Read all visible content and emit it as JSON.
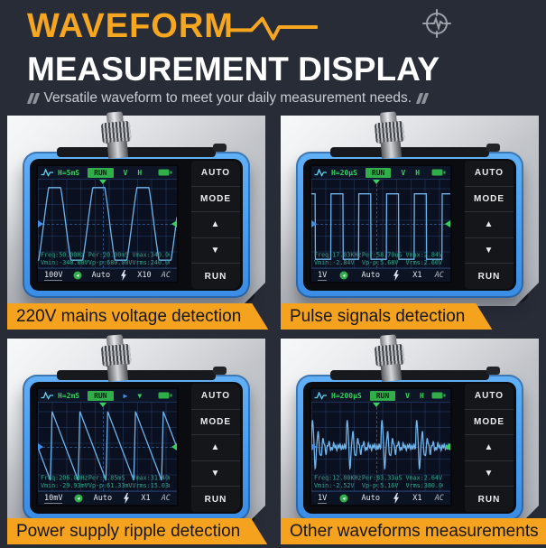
{
  "page": {
    "background": "#272c37",
    "accent_orange": "#f5a31e",
    "device_blue": "#4aa0f2",
    "screen_green": "#35d05e",
    "wave_blue": "#6fb4ea",
    "readout_teal": "#2fa98c"
  },
  "header": {
    "title_line1": "WAVEFORM",
    "title_line2": "MEASUREMENT DISPLAY",
    "subtitle": "Versatile waveform to meet your daily measurement needs."
  },
  "icons": {
    "waveform_zigzag": "orange zigzag pulse line after WAVEFORM title",
    "pulse_target": "gray circle crosshair with pulse line, top right",
    "quote_marks": "gray skewed double bars around subtitle",
    "battery": "green battery, screen status bar",
    "bolt": "lightning bolt, screen bottom bar",
    "trigger_circle": "green circle indicator, screen bottom bar"
  },
  "buttons": {
    "auto": "AUTO",
    "mode": "MODE",
    "up": "▲",
    "down": "▼",
    "run": "RUN"
  },
  "panels": [
    {
      "caption": "220V mains voltage detection",
      "screen": {
        "hdiv": "H=5mS",
        "run": "RUN",
        "ind1": "V",
        "ind1_color": "#35d05e",
        "ind2": "H",
        "ind2_color": "#35d05e",
        "readouts": {
          "freq": "Freq:50.00Hz",
          "per": "Per:20.00mS",
          "vmax": "Vmax:340.00V",
          "vmin": "Vmin:-340.00V",
          "vpp": "Vp-p:680.00V",
          "vrms": "Vrms:240.00V"
        },
        "volt_div": "100V",
        "trig_mode": "Auto",
        "probe": "X10",
        "coupling": "AC"
      },
      "wave": {
        "type": "sine",
        "cycles": 3.15,
        "amp": 41,
        "phase": -0.13
      }
    },
    {
      "caption": "Pulse signals detection",
      "screen": {
        "hdiv": "H=20μS",
        "run": "RUN",
        "ind1": "V",
        "ind1_color": "#35d05e",
        "ind2": "H",
        "ind2_color": "#35d05e",
        "readouts": {
          "freq": "Freq:17.03KHz",
          "per": "Per:58.70uS",
          "vmax": "Vmax:2.84V",
          "vmin": "Vmin:-2.84V",
          "vpp": "Vp-p:5.68V",
          "vrms": "Vrms:2.60V"
        },
        "volt_div": "1V",
        "trig_mode": "Auto",
        "probe": "X1",
        "coupling": "AC"
      },
      "wave": {
        "type": "square",
        "cycles": 5,
        "duty": 0.44,
        "hi": 16,
        "lo": 90,
        "phase": 0.3
      }
    },
    {
      "caption": "Power supply ripple detection",
      "screen": {
        "hdiv": "H=2mS",
        "run": "RUN",
        "ind1": "▶",
        "ind1_color": "#3f8fe8",
        "ind2": "▼",
        "ind2_color": "#35d05e",
        "readouts": {
          "freq": "Freq:206.00Hz",
          "per": "Per:4.85mS",
          "vmax": "Vmax:31.40mV",
          "vmin": "Vmin:-29.93mV",
          "vpp": "Vp-p:61.33mV",
          "vrms": "Vrms:15.03mV"
        },
        "volt_div": "10mV",
        "trig_mode": "Auto",
        "probe": "X1",
        "coupling": "AC"
      },
      "wave": {
        "type": "saw",
        "cycles": 5,
        "hi": 10,
        "lo": 88,
        "phase": 0.55
      }
    },
    {
      "caption": "Other waveforms measurements",
      "screen": {
        "hdiv": "H=200μS",
        "run": "RUN",
        "ind1": "V",
        "ind1_color": "#35d05e",
        "ind2": "H",
        "ind2_color": "#35d05e",
        "readouts": {
          "freq": "Freq:12.00KHz",
          "per": "Per:83.33uS",
          "vmax": "Vmax:2.64V",
          "vmin": "Vmin:-2.52V",
          "vpp": "Vp-p:5.16V",
          "vrms": "Vrms:380.00mV"
        },
        "volt_div": "1V",
        "trig_mode": "Auto",
        "probe": "X1",
        "coupling": "AC"
      },
      "wave": {
        "type": "ringing",
        "cycles": 4,
        "amp": 36,
        "phase": 0
      }
    }
  ]
}
